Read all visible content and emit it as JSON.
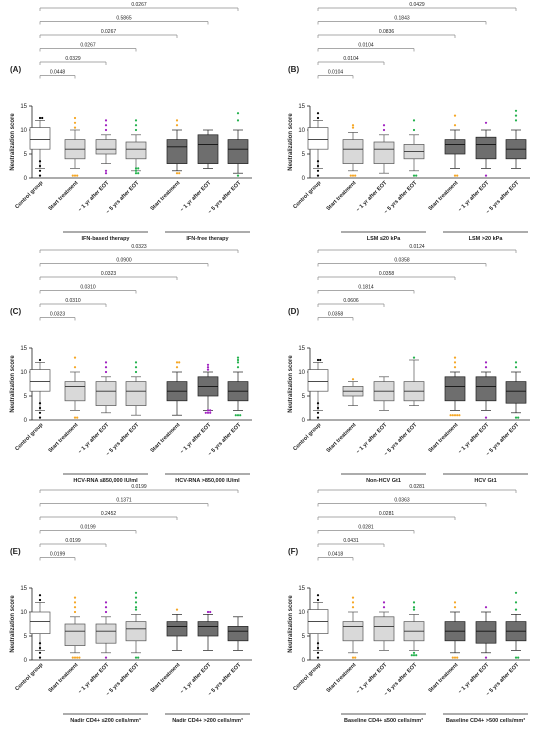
{
  "chart_data": [
    {
      "type": "boxplot",
      "panel_label": "(A)",
      "ylabel": "Neutralization score",
      "ylim": [
        0,
        15
      ],
      "yticks": [
        0,
        5,
        10,
        15
      ],
      "categories": [
        "Control group",
        "Start treatment",
        "~ 1 yr after EOT",
        "~ 5 yrs after EOT",
        "Start treatment",
        "~ 1 yr after EOT",
        "~ 5 yrs after EOT"
      ],
      "groups": [
        {
          "label": "IFN-based therapy",
          "from": 1,
          "to": 3
        },
        {
          "label": "IFN-free therapy",
          "from": 4,
          "to": 6
        }
      ],
      "boxes": [
        {
          "q1": 6,
          "median": 8,
          "q3": 10.5,
          "whisker_low": 2,
          "whisker_high": 12,
          "outliers": [
            0.5,
            1.5,
            2.5,
            3.5,
            12.5,
            12.5
          ],
          "fill": "white",
          "dot_color": "#000000"
        },
        {
          "q1": 4,
          "median": 6,
          "q3": 8,
          "whisker_low": 2,
          "whisker_high": 10,
          "outliers": [
            0.5,
            0.5,
            0.5,
            10.5,
            11.5,
            12.5
          ],
          "fill": "light",
          "dot_color": "#F5A623"
        },
        {
          "q1": 5,
          "median": 6,
          "q3": 8,
          "whisker_low": 3,
          "whisker_high": 9,
          "outliers": [
            1,
            1.5,
            10,
            11,
            12
          ],
          "fill": "light",
          "dot_color": "#A020C0"
        },
        {
          "q1": 4,
          "median": 6,
          "q3": 7.5,
          "whisker_low": 1.5,
          "whisker_high": 9,
          "outliers": [
            1,
            1,
            1.5,
            2,
            2,
            10,
            11,
            12
          ],
          "fill": "light",
          "dot_color": "#22B14C"
        },
        {
          "q1": 3,
          "median": 6.5,
          "q3": 8,
          "whisker_low": 1.5,
          "whisker_high": 10,
          "outliers": [
            1,
            1,
            11,
            12
          ],
          "fill": "dark",
          "dot_color": "#F5A623"
        },
        {
          "q1": 3,
          "median": 7,
          "q3": 9,
          "whisker_low": 2,
          "whisker_high": 10,
          "outliers": [],
          "fill": "dark",
          "dot_color": "#A020C0"
        },
        {
          "q1": 3,
          "median": 6,
          "q3": 8,
          "whisker_low": 1,
          "whisker_high": 10,
          "outliers": [
            0.5,
            12,
            13.5
          ],
          "fill": "dark",
          "dot_color": "#22B14C"
        }
      ],
      "pvalues": [
        "0.0267",
        "0.5865",
        "0.0267",
        "0.0267",
        "0.0329",
        "0.0448"
      ]
    },
    {
      "type": "boxplot",
      "panel_label": "(B)",
      "ylabel": "Neutralization score",
      "ylim": [
        0,
        15
      ],
      "yticks": [
        0,
        5,
        10,
        15
      ],
      "categories": [
        "Control group",
        "Start treatment",
        "~ 1 yr after EOT",
        "~ 5 yrs after EOT",
        "Start treatment",
        "~ 1 yr after EOT",
        "~ 5 yrs after EOT"
      ],
      "groups": [
        {
          "label": "LSM ≤20 kPa",
          "from": 1,
          "to": 3
        },
        {
          "label": "LSM >20 kPa",
          "from": 4,
          "to": 6
        }
      ],
      "boxes": [
        {
          "q1": 6,
          "median": 8,
          "q3": 10.5,
          "whisker_low": 2,
          "whisker_high": 12,
          "outliers": [
            0.5,
            1.5,
            2.5,
            3.5,
            12.5,
            13.5
          ],
          "fill": "white",
          "dot_color": "#000000"
        },
        {
          "q1": 3,
          "median": 6,
          "q3": 8,
          "whisker_low": 1.5,
          "whisker_high": 9.5,
          "outliers": [
            0.5,
            0.5,
            0.5,
            10.5,
            11
          ],
          "fill": "light",
          "dot_color": "#F5A623"
        },
        {
          "q1": 3,
          "median": 6,
          "q3": 7.5,
          "whisker_low": 1,
          "whisker_high": 9,
          "outliers": [
            10,
            11
          ],
          "fill": "light",
          "dot_color": "#A020C0"
        },
        {
          "q1": 4,
          "median": 5.5,
          "q3": 7,
          "whisker_low": 1.5,
          "whisker_high": 9,
          "outliers": [
            0.5,
            0.5,
            10,
            12
          ],
          "fill": "light",
          "dot_color": "#22B14C"
        },
        {
          "q1": 5,
          "median": 7,
          "q3": 8,
          "whisker_low": 2,
          "whisker_high": 10,
          "outliers": [
            0.5,
            0.5,
            11,
            13
          ],
          "fill": "dark",
          "dot_color": "#F5A623"
        },
        {
          "q1": 4,
          "median": 7,
          "q3": 8.5,
          "whisker_low": 2,
          "whisker_high": 10,
          "outliers": [
            0.5,
            11.5
          ],
          "fill": "dark",
          "dot_color": "#A020C0"
        },
        {
          "q1": 4,
          "median": 6,
          "q3": 8,
          "whisker_low": 2,
          "whisker_high": 10,
          "outliers": [
            12,
            13,
            14
          ],
          "fill": "dark",
          "dot_color": "#22B14C"
        }
      ],
      "pvalues": [
        "0.0429",
        "0.1843",
        "0.0836",
        "0.0104",
        "0.0104",
        "0.0104"
      ]
    },
    {
      "type": "boxplot",
      "panel_label": "(C)",
      "ylabel": "Neutralization score",
      "ylim": [
        0,
        15
      ],
      "yticks": [
        0,
        5,
        10,
        15
      ],
      "categories": [
        "Control group",
        "Start treatment",
        "~ 1 yr after EOT",
        "~ 5 yrs after EOT",
        "Start treatment",
        "~ 1 yr after EOT",
        "~ 5 yrs after EOT"
      ],
      "groups": [
        {
          "label": "HCV-RNA ≤850,000 IU/ml",
          "from": 1,
          "to": 3
        },
        {
          "label": "HCV-RNA >850,000 IU/ml",
          "from": 4,
          "to": 6
        }
      ],
      "boxes": [
        {
          "q1": 6,
          "median": 8,
          "q3": 10.5,
          "whisker_low": 2,
          "whisker_high": 12,
          "outliers": [
            0.5,
            1.5,
            2.5,
            3.5,
            12.5
          ],
          "fill": "white",
          "dot_color": "#000000"
        },
        {
          "q1": 4,
          "median": 7,
          "q3": 8,
          "whisker_low": 2,
          "whisker_high": 10,
          "outliers": [
            0.5,
            0.5,
            11,
            13
          ],
          "fill": "light",
          "dot_color": "#F5A623"
        },
        {
          "q1": 3,
          "median": 6,
          "q3": 8,
          "whisker_low": 1.5,
          "whisker_high": 9,
          "outliers": [
            10,
            11,
            12
          ],
          "fill": "light",
          "dot_color": "#A020C0"
        },
        {
          "q1": 3,
          "median": 6,
          "q3": 8,
          "whisker_low": 1,
          "whisker_high": 9,
          "outliers": [
            10,
            11,
            12
          ],
          "fill": "light",
          "dot_color": "#22B14C"
        },
        {
          "q1": 4,
          "median": 6,
          "q3": 8,
          "whisker_low": 1,
          "whisker_high": 10,
          "outliers": [
            11,
            12,
            12
          ],
          "fill": "dark",
          "dot_color": "#F5A623"
        },
        {
          "q1": 5,
          "median": 7,
          "q3": 9,
          "whisker_low": 2,
          "whisker_high": 10,
          "outliers": [
            1.5,
            1.5,
            1.5,
            2,
            2,
            10.5,
            11,
            11.5
          ],
          "fill": "dark",
          "dot_color": "#A020C0"
        },
        {
          "q1": 4,
          "median": 6,
          "q3": 8,
          "whisker_low": 2,
          "whisker_high": 10,
          "outliers": [
            1,
            1,
            1,
            11,
            12,
            12.5,
            13
          ],
          "fill": "dark",
          "dot_color": "#22B14C"
        }
      ],
      "pvalues": [
        "0.0323",
        "0.0900",
        "0.0323",
        "0.0310",
        "0.0310",
        "0.0323"
      ]
    },
    {
      "type": "boxplot",
      "panel_label": "(D)",
      "ylabel": "Neutralization score",
      "ylim": [
        0,
        15
      ],
      "yticks": [
        0,
        5,
        10,
        15
      ],
      "categories": [
        "Control group",
        "Start treatment",
        "~ 1 yr after EOT",
        "~ 5 yrs after EOT",
        "Start treatment",
        "~ 1 yr after EOT",
        "~ 5 yrs after EOT"
      ],
      "groups": [
        {
          "label": "Non-HCV Gt1",
          "from": 1,
          "to": 3
        },
        {
          "label": "HCV Gt1",
          "from": 4,
          "to": 6
        }
      ],
      "boxes": [
        {
          "q1": 6,
          "median": 8,
          "q3": 10.5,
          "whisker_low": 2,
          "whisker_high": 12,
          "outliers": [
            0.5,
            1.5,
            2.5,
            3.5,
            12.5,
            12.5
          ],
          "fill": "white",
          "dot_color": "#000000"
        },
        {
          "q1": 5,
          "median": 6,
          "q3": 7,
          "whisker_low": 3,
          "whisker_high": 8,
          "outliers": [
            8.5
          ],
          "fill": "light",
          "dot_color": "#F5A623"
        },
        {
          "q1": 4,
          "median": 6,
          "q3": 8,
          "whisker_low": 2,
          "whisker_high": 9,
          "outliers": [],
          "fill": "light",
          "dot_color": "#A020C0"
        },
        {
          "q1": 4,
          "median": 6,
          "q3": 8,
          "whisker_low": 3,
          "whisker_high": 12.5,
          "outliers": [
            13
          ],
          "fill": "light",
          "dot_color": "#22B14C"
        },
        {
          "q1": 4,
          "median": 7,
          "q3": 9,
          "whisker_low": 2,
          "whisker_high": 10,
          "outliers": [
            1,
            1,
            1,
            1,
            1,
            11,
            12,
            13
          ],
          "fill": "dark",
          "dot_color": "#F5A623"
        },
        {
          "q1": 4,
          "median": 7,
          "q3": 9,
          "whisker_low": 2,
          "whisker_high": 10,
          "outliers": [
            0.5,
            11,
            12
          ],
          "fill": "dark",
          "dot_color": "#A020C0"
        },
        {
          "q1": 3.5,
          "median": 6,
          "q3": 8,
          "whisker_low": 1.5,
          "whisker_high": 10,
          "outliers": [
            0.5,
            0.5,
            11,
            12
          ],
          "fill": "dark",
          "dot_color": "#22B14C"
        }
      ],
      "pvalues": [
        "0.0124",
        "0.0358",
        "0.0358",
        "0.1814",
        "0.0606",
        "0.0358"
      ]
    },
    {
      "type": "boxplot",
      "panel_label": "(E)",
      "ylabel": "Neutralization score",
      "ylim": [
        0,
        15
      ],
      "yticks": [
        0,
        5,
        10,
        15
      ],
      "categories": [
        "Control group",
        "Start treatment",
        "~ 1 yr after EOT",
        "~ 5 yrs after EOT",
        "Start treatment",
        "~ 1 yr after EOT",
        "~ 5 yrs after EOT"
      ],
      "groups": [
        {
          "label": "Nadir CD4+ ≤200 cells/mm³",
          "from": 1,
          "to": 3
        },
        {
          "label": "Nadir CD4+ >200 cells/mm³",
          "from": 4,
          "to": 6
        }
      ],
      "boxes": [
        {
          "q1": 5.5,
          "median": 8,
          "q3": 10,
          "whisker_low": 2,
          "whisker_high": 12,
          "outliers": [
            0.5,
            1.5,
            2.5,
            3.5,
            12.5,
            13.5
          ],
          "fill": "white",
          "dot_color": "#000000"
        },
        {
          "q1": 3,
          "median": 6,
          "q3": 7.5,
          "whisker_low": 1.5,
          "whisker_high": 9,
          "outliers": [
            0.5,
            0.5,
            0.5,
            0.5,
            10,
            11,
            12,
            13
          ],
          "fill": "light",
          "dot_color": "#F5A623"
        },
        {
          "q1": 3.5,
          "median": 6,
          "q3": 7.5,
          "whisker_low": 1.5,
          "whisker_high": 9,
          "outliers": [
            0.5,
            10,
            11,
            12
          ],
          "fill": "light",
          "dot_color": "#A020C0"
        },
        {
          "q1": 4,
          "median": 6.5,
          "q3": 8,
          "whisker_low": 1.5,
          "whisker_high": 9.5,
          "outliers": [
            0.5,
            0.5,
            10.5,
            11,
            12,
            13,
            14
          ],
          "fill": "light",
          "dot_color": "#22B14C"
        },
        {
          "q1": 5,
          "median": 7,
          "q3": 8,
          "whisker_low": 2,
          "whisker_high": 9.5,
          "outliers": [
            10.5
          ],
          "fill": "dark",
          "dot_color": "#F5A623"
        },
        {
          "q1": 5,
          "median": 7,
          "q3": 8,
          "whisker_low": 2,
          "whisker_high": 9.5,
          "outliers": [
            10,
            10
          ],
          "fill": "dark",
          "dot_color": "#A020C0"
        },
        {
          "q1": 4,
          "median": 6,
          "q3": 7,
          "whisker_low": 2,
          "whisker_high": 9,
          "outliers": [],
          "fill": "dark",
          "dot_color": "#22B14C"
        }
      ],
      "pvalues": [
        "0.0199",
        "0.1371",
        "0.2452",
        "0.0199",
        "0.0199",
        "0.0199"
      ]
    },
    {
      "type": "boxplot",
      "panel_label": "(F)",
      "ylabel": "Neutralization score",
      "ylim": [
        0,
        15
      ],
      "yticks": [
        0,
        5,
        10,
        15
      ],
      "categories": [
        "Control group",
        "Start treatment",
        "~ 1 yr after EOT",
        "~ 5 yrs after EOT",
        "Start treatment",
        "~ 1 yr after EOT",
        "~ 5 yrs after EOT"
      ],
      "groups": [
        {
          "label": "Baseline CD4+ ≤500 cells/mm³",
          "from": 1,
          "to": 3
        },
        {
          "label": "Baseline CD4+ >500 cells/mm³",
          "from": 4,
          "to": 6
        }
      ],
      "boxes": [
        {
          "q1": 5.5,
          "median": 8,
          "q3": 10.5,
          "whisker_low": 2,
          "whisker_high": 12,
          "outliers": [
            0.5,
            1.5,
            2.5,
            3.5,
            12.5,
            13.5
          ],
          "fill": "white",
          "dot_color": "#000000"
        },
        {
          "q1": 4,
          "median": 7,
          "q3": 8,
          "whisker_low": 1.5,
          "whisker_high": 10,
          "outliers": [
            0.5,
            0.5,
            11,
            12,
            13
          ],
          "fill": "light",
          "dot_color": "#F5A623"
        },
        {
          "q1": 4,
          "median": 7,
          "q3": 9,
          "whisker_low": 2,
          "whisker_high": 10,
          "outliers": [
            11,
            12
          ],
          "fill": "light",
          "dot_color": "#A020C0"
        },
        {
          "q1": 4,
          "median": 6,
          "q3": 8,
          "whisker_low": 2,
          "whisker_high": 9.5,
          "outliers": [
            1,
            1,
            1,
            1.5,
            10.5,
            11,
            12
          ],
          "fill": "light",
          "dot_color": "#22B14C"
        },
        {
          "q1": 4,
          "median": 6,
          "q3": 8,
          "whisker_low": 1.5,
          "whisker_high": 10,
          "outliers": [
            0.5,
            0.5,
            0.5,
            11,
            12
          ],
          "fill": "dark",
          "dot_color": "#F5A623"
        },
        {
          "q1": 3.5,
          "median": 6,
          "q3": 8,
          "whisker_low": 1.5,
          "whisker_high": 10,
          "outliers": [
            0.5,
            11
          ],
          "fill": "dark",
          "dot_color": "#A020C0"
        },
        {
          "q1": 4,
          "median": 6,
          "q3": 8,
          "whisker_low": 2,
          "whisker_high": 9.5,
          "outliers": [
            0.5,
            0.5,
            10.5,
            12,
            14
          ],
          "fill": "dark",
          "dot_color": "#22B14C"
        }
      ],
      "pvalues": [
        "0.0281",
        "0.0363",
        "0.0281",
        "0.0281",
        "0.0431",
        "0.0418"
      ]
    }
  ],
  "colors": {
    "box_white": "#FFFFFF",
    "box_light": "#D9D9D9",
    "box_dark": "#6E6E6E",
    "line": "#222222",
    "pbar": "#8C8C8C"
  }
}
